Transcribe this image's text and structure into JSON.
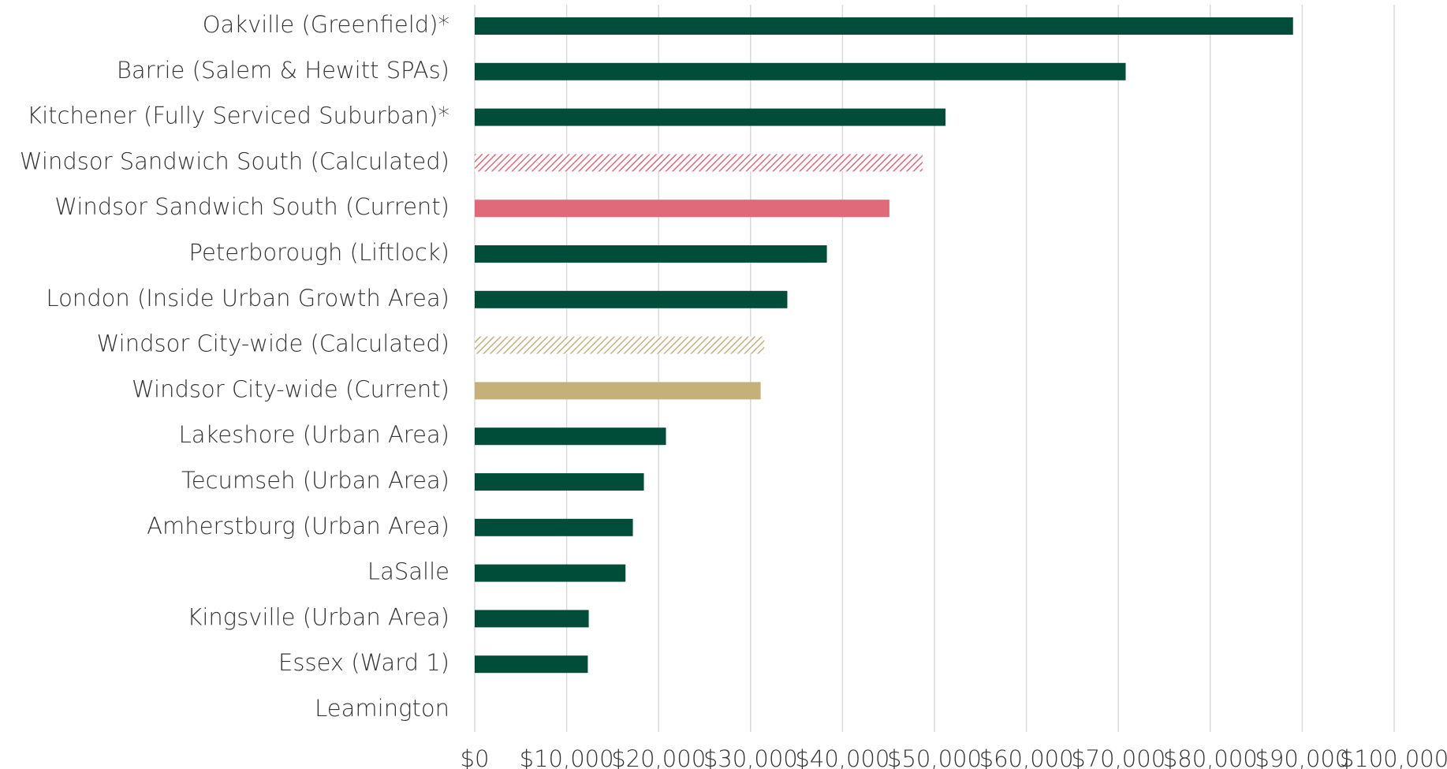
{
  "chart_data": {
    "type": "hbar",
    "categories": [
      "Oakville (Greenfield)*",
      "Barrie (Salem & Hewitt SPAs)",
      "Kitchener (Fully Serviced Suburban)*",
      "Windsor Sandwich South (Calculated)",
      "Windsor Sandwich South (Current)",
      "Peterborough (Liftlock)",
      "London (Inside Urban Growth Area)",
      "Windsor City-wide (Calculated)",
      "Windsor City-wide (Current)",
      "Lakeshore (Urban Area)",
      "Tecumseh (Urban Area)",
      "Amherstburg (Urban Area)",
      "LaSalle",
      "Kingsville (Urban Area)",
      "Essex (Ward 1)",
      "Leamington"
    ],
    "values": [
      89000,
      70800,
      51200,
      48700,
      45100,
      38300,
      34000,
      31500,
      31100,
      20800,
      18400,
      17200,
      16400,
      12400,
      12300,
      0
    ],
    "colors": [
      "#004d3a",
      "#004d3a",
      "#004d3a",
      "#e0697a",
      "#e0697a",
      "#004d3a",
      "#004d3a",
      "#c5b07a",
      "#c5b07a",
      "#004d3a",
      "#004d3a",
      "#004d3a",
      "#004d3a",
      "#004d3a",
      "#004d3a",
      "#004d3a"
    ],
    "hatched": [
      false,
      false,
      false,
      true,
      false,
      false,
      false,
      true,
      false,
      false,
      false,
      false,
      false,
      false,
      false,
      false
    ],
    "xlim": [
      0,
      100000
    ],
    "xticks": [
      {
        "value": 0,
        "label": "$0"
      },
      {
        "value": 10000,
        "label": "$10,000"
      },
      {
        "value": 20000,
        "label": "$20,000"
      },
      {
        "value": 30000,
        "label": "$30,000"
      },
      {
        "value": 40000,
        "label": "$40,000"
      },
      {
        "value": 50000,
        "label": "$50,000"
      },
      {
        "value": 60000,
        "label": "$60,000"
      },
      {
        "value": 70000,
        "label": "$70,000"
      },
      {
        "value": 80000,
        "label": "$80,000"
      },
      {
        "value": 90000,
        "label": "$90,000"
      },
      {
        "value": 100000,
        "label": "$100,000"
      }
    ],
    "grid": true
  }
}
